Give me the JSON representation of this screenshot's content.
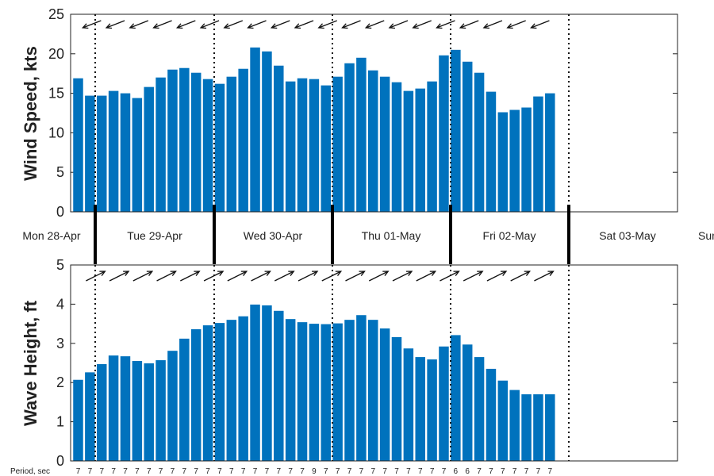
{
  "chart_data": [
    {
      "type": "bar",
      "ylabel": "Wind Speed, kts",
      "ylim": [
        0,
        25
      ],
      "yticks": [
        0,
        5,
        10,
        15,
        20,
        25
      ],
      "values": [
        16.9,
        14.7,
        14.7,
        15.3,
        15.0,
        14.4,
        15.8,
        17.0,
        18.0,
        18.2,
        17.6,
        16.8,
        16.2,
        17.1,
        18.1,
        20.8,
        20.3,
        18.5,
        16.5,
        16.9,
        16.8,
        16.0,
        17.1,
        18.8,
        19.5,
        17.9,
        17.1,
        16.4,
        15.3,
        15.6,
        16.5,
        19.8,
        20.5,
        19.0,
        17.6,
        15.2,
        12.6,
        12.9,
        13.2,
        14.6,
        15.0
      ],
      "direction_arrows": "wind direction arrows at top of panel, pointing toward the west-southwest",
      "bar_color": "#0072BD",
      "grid": false
    },
    {
      "type": "bar",
      "ylabel": "Wave Height, ft",
      "ylim": [
        0,
        5
      ],
      "yticks": [
        0,
        1,
        2,
        3,
        4,
        5
      ],
      "values": [
        2.07,
        2.26,
        2.47,
        2.69,
        2.67,
        2.55,
        2.49,
        2.57,
        2.81,
        3.12,
        3.36,
        3.46,
        3.52,
        3.6,
        3.69,
        3.99,
        3.97,
        3.83,
        3.62,
        3.54,
        3.5,
        3.49,
        3.51,
        3.6,
        3.72,
        3.6,
        3.38,
        3.16,
        2.87,
        2.65,
        2.59,
        2.92,
        3.21,
        2.97,
        2.65,
        2.35,
        2.05,
        1.81,
        1.7,
        1.7,
        1.7
      ],
      "direction_arrows": "wave direction arrows at top of panel, pointing toward the northeast",
      "bar_color": "#0072BD",
      "grid": false
    }
  ],
  "days": [
    "Mon 28-Apr",
    "Tue 29-Apr",
    "Wed 30-Apr",
    "Thu 01-May",
    "Fri 02-May",
    "Sat 03-May",
    "Sun"
  ],
  "period_label": "Period, sec",
  "periods": [
    7,
    7,
    7,
    7,
    7,
    7,
    7,
    7,
    7,
    7,
    7,
    7,
    7,
    7,
    7,
    7,
    7,
    7,
    7,
    7,
    9,
    7,
    7,
    7,
    7,
    7,
    7,
    7,
    7,
    7,
    7,
    7,
    6,
    6,
    7,
    7,
    7,
    7,
    7,
    7,
    7
  ]
}
